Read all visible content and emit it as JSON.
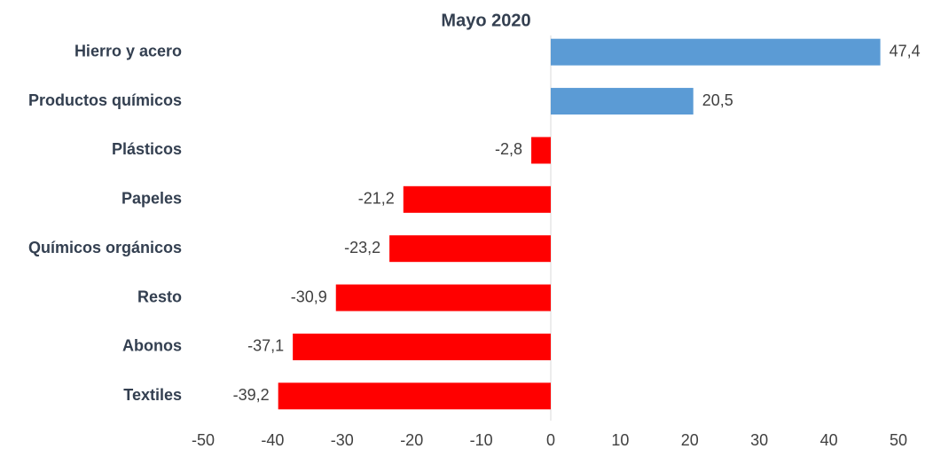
{
  "chart_data": {
    "type": "bar",
    "orientation": "horizontal",
    "title": "Mayo 2020",
    "categories": [
      "Hierro y acero",
      "Productos químicos",
      "Plásticos",
      "Papeles",
      "Químicos orgánicos",
      "Resto",
      "Abonos",
      "Textiles"
    ],
    "values": [
      47.4,
      20.5,
      -2.8,
      -21.2,
      -23.2,
      -30.9,
      -37.1,
      -39.2
    ],
    "value_labels": [
      "47,4",
      "20,5",
      "-2,8",
      "-21,2",
      "-23,2",
      "-30,9",
      "-37,1",
      "-39,2"
    ],
    "positive_color": "#5b9bd5",
    "negative_color": "#ff0000",
    "xlim": [
      -50,
      50
    ],
    "xticks": [
      -50,
      -40,
      -30,
      -20,
      -10,
      0,
      10,
      20,
      30,
      40,
      50
    ],
    "grid": false
  }
}
